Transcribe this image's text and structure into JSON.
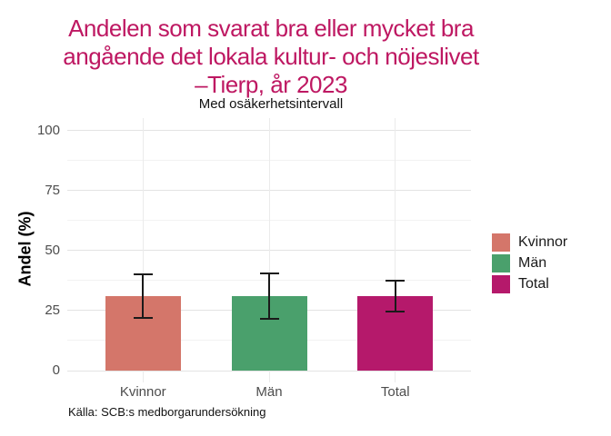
{
  "page": {
    "title_lines": [
      "Andelen som svarat bra eller mycket bra",
      "angående det lokala kultur- och nöjeslivet",
      "–Tierp, år 2023"
    ],
    "subtitle": "Med osäkerhetsintervall",
    "caption": "Källa: SCB:s medborgarundersökning",
    "title_color": "#be1862"
  },
  "chart_data": {
    "type": "bar",
    "title": "Andelen som svarat bra eller mycket bra angående det lokala kultur- och nöjeslivet –Tierp, år 2023",
    "subtitle": "Med osäkerhetsintervall",
    "caption": "Källa: SCB:s medborgarundersökning",
    "xlabel": "",
    "ylabel": "Andel (%)",
    "ylim": [
      0,
      100
    ],
    "y_major_ticks": [
      0,
      25,
      50,
      75,
      100
    ],
    "y_minor_ticks": [
      12.5,
      37.5,
      62.5,
      87.5
    ],
    "categories": [
      "Kvinnor",
      "Män",
      "Total"
    ],
    "series": [
      {
        "name": "Kvinnor",
        "value": 31,
        "ci_low": 22,
        "ci_high": 40,
        "color": "#d4766a"
      },
      {
        "name": "Män",
        "value": 31,
        "ci_low": 21.5,
        "ci_high": 40.5,
        "color": "#4aa06c"
      },
      {
        "name": "Total",
        "value": 31,
        "ci_low": 24.5,
        "ci_high": 37.5,
        "color": "#b5196b"
      }
    ],
    "error_bars": true,
    "grid": true,
    "legend_position": "right",
    "colors": {
      "title": "#be1862",
      "axis_text": "#4d4d4d",
      "grid_major": "#e3e3e3",
      "grid_minor": "#f2f2f2",
      "error_bar": "#1a1a1a",
      "background": "#ffffff"
    }
  }
}
